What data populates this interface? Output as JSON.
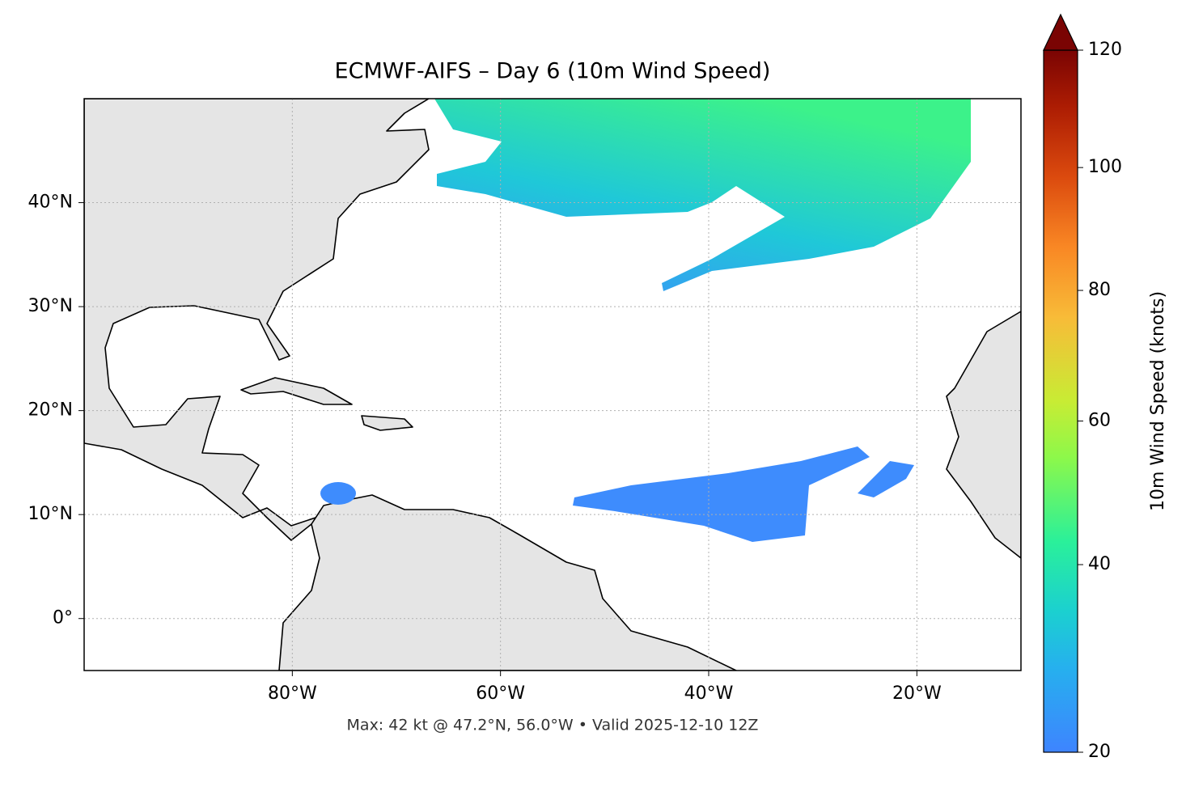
{
  "chart_data": {
    "type": "map",
    "title": "ECMWF-AIFS – Day 6 (10m Wind Speed)",
    "annotation": "Max: 42 kt @ 47.2°N, 56.0°W • Valid 2025-12-10 12Z",
    "xlim": [
      -100,
      -10
    ],
    "ylim": [
      -5,
      50
    ],
    "xticks": [
      {
        "value": -80,
        "label": "80°W"
      },
      {
        "value": -60,
        "label": "60°W"
      },
      {
        "value": -40,
        "label": "40°W"
      },
      {
        "value": -20,
        "label": "20°W"
      }
    ],
    "yticks": [
      {
        "value": 0,
        "label": "0°"
      },
      {
        "value": 10,
        "label": "10°N"
      },
      {
        "value": 20,
        "label": "20°N"
      },
      {
        "value": 30,
        "label": "30°N"
      },
      {
        "value": 40,
        "label": "40°N"
      }
    ],
    "grid": true,
    "colorbar": {
      "label": "10m Wind Speed (knots)",
      "lim": [
        20,
        120
      ],
      "ticks": [
        20,
        40,
        60,
        80,
        100,
        120
      ],
      "extend": "max"
    }
  }
}
